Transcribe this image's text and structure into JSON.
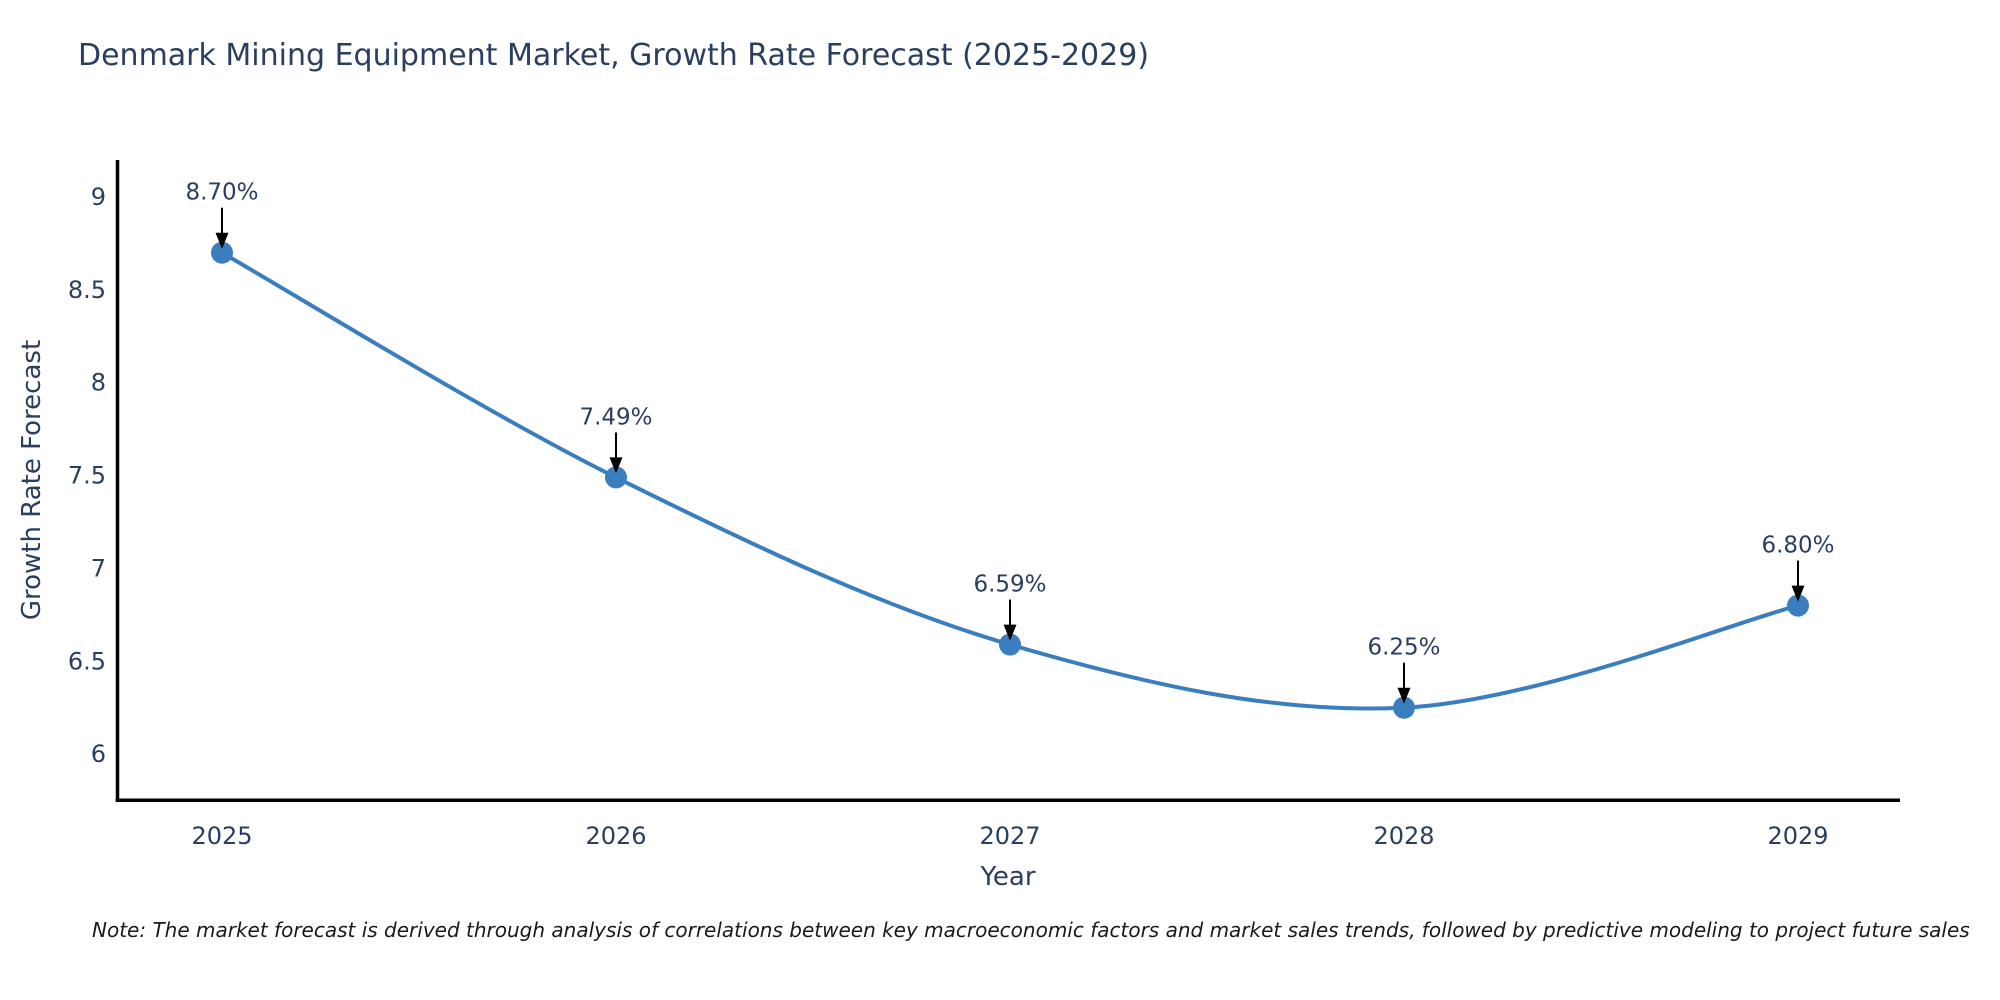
{
  "title": "Denmark Mining Equipment Market, Growth Rate Forecast (2025-2029)",
  "note": "Note: The market forecast is derived through analysis of correlations between key macroeconomic factors and market sales trends, followed by predictive modeling to project future sales",
  "chart_data": {
    "type": "line",
    "line_shape": "spline",
    "title": "Denmark Mining Equipment Market, Growth Rate Forecast (2025-2029)",
    "xlabel": "Year",
    "ylabel": "Growth Rate Forecast",
    "x": [
      2025,
      2026,
      2027,
      2028,
      2029
    ],
    "values": [
      8.7,
      7.49,
      6.59,
      6.25,
      6.8
    ],
    "point_labels": [
      "8.70%",
      "7.49%",
      "6.59%",
      "6.25%",
      "6.80%"
    ],
    "xtick_labels": [
      "2025",
      "2026",
      "2027",
      "2028",
      "2029"
    ],
    "ytick_values": [
      9,
      8.5,
      8,
      7.5,
      7,
      6.5,
      6
    ],
    "ytick_labels": [
      "9",
      "8.5",
      "8",
      "7.5",
      "7",
      "6.5",
      "6"
    ],
    "ylim": [
      5.75,
      9.2
    ],
    "grid": false,
    "legend": "none",
    "annotations": "arrow-down-to-point",
    "colors": {
      "line": "#3a7ebf",
      "marker": "#3a7ebf",
      "axis": "#000000",
      "text": "#2a3f5f",
      "annotation_text": "#2a3f5f",
      "annotation_arrow": "#000000"
    }
  }
}
